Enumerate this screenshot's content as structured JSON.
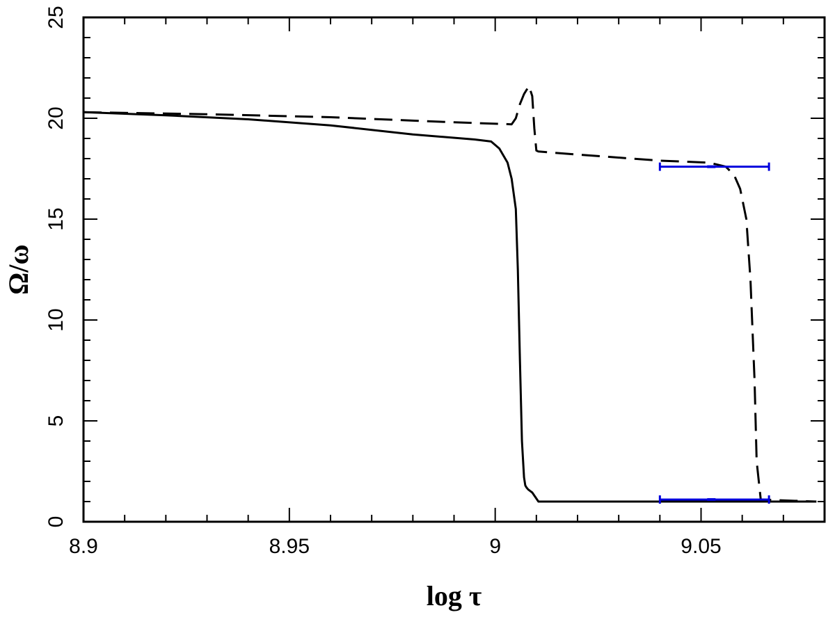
{
  "chart_data": {
    "type": "line",
    "xlabel": "log τ",
    "ylabel": "Ω/ω",
    "xlim": [
      8.9,
      9.08
    ],
    "ylim": [
      0,
      25
    ],
    "xticks": [
      8.9,
      8.95,
      9,
      9.05
    ],
    "xtick_labels": [
      "8.9",
      "8.95",
      "9",
      "9.05"
    ],
    "yticks": [
      0,
      5,
      10,
      15,
      20,
      25
    ],
    "ytick_labels": [
      "0",
      "5",
      "10",
      "15",
      "20",
      "25"
    ],
    "grid": false,
    "colors": {
      "solid": "#000000",
      "dashed": "#000000",
      "error_bars": "#0000dd"
    },
    "series": [
      {
        "style": "solid",
        "x": [
          8.9,
          8.92,
          8.94,
          8.96,
          8.98,
          8.995,
          8.999,
          9.001,
          9.003,
          9.004,
          9.005,
          9.0055,
          9.006,
          9.0065,
          9.007,
          9.0073,
          9.0076,
          9.008,
          9.009,
          9.0105,
          9.02,
          9.04,
          9.06,
          9.078
        ],
        "y": [
          20.3,
          20.15,
          19.95,
          19.65,
          19.2,
          18.95,
          18.85,
          18.5,
          17.8,
          17.0,
          15.5,
          12.5,
          8.0,
          4.0,
          2.2,
          1.8,
          1.7,
          1.6,
          1.45,
          1.0,
          1.0,
          1.0,
          1.0,
          1.0
        ]
      },
      {
        "style": "dashed",
        "x": [
          8.9,
          8.93,
          8.96,
          8.99,
          9.004,
          9.005,
          9.006,
          9.007,
          9.0082,
          9.009,
          9.0095,
          9.01,
          9.0105,
          9.02,
          9.04,
          9.052,
          9.056,
          9.058,
          9.0595,
          9.061,
          9.062,
          9.063,
          9.0635,
          9.0645,
          9.078
        ],
        "y": [
          20.3,
          20.2,
          20.05,
          19.8,
          19.7,
          20.0,
          20.7,
          21.2,
          21.6,
          21.1,
          19.5,
          18.4,
          18.35,
          18.2,
          17.9,
          17.8,
          17.6,
          17.2,
          16.5,
          15.0,
          12.0,
          7.0,
          3.0,
          1.1,
          1.0
        ]
      }
    ],
    "error_bars": [
      {
        "y": 17.6,
        "x": 9.0525,
        "xmin": 9.04,
        "xmax": 9.0665
      },
      {
        "y": 1.1,
        "x": 9.0525,
        "xmin": 9.04,
        "xmax": 9.0665
      }
    ]
  }
}
